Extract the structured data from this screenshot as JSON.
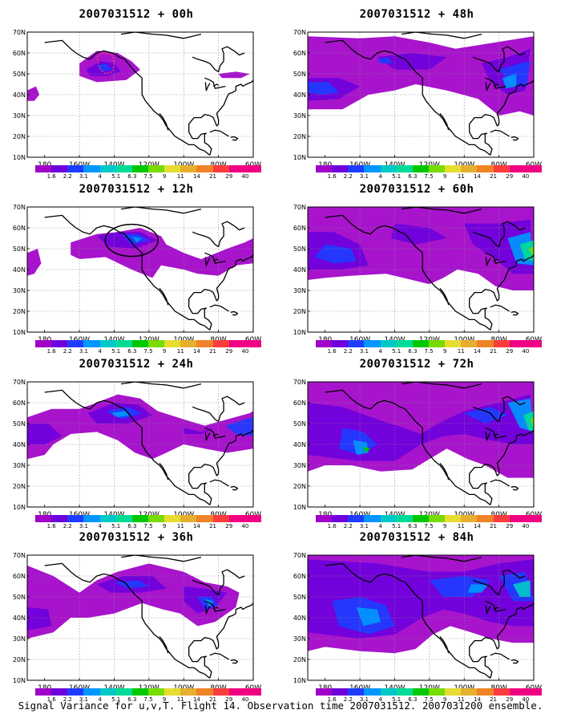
{
  "caption": "Signal Variance for u,v,T. Flight 14. Observation time 2007031512. 2007031200 ensemble.",
  "axes": {
    "x_ticks": [
      "180",
      "160W",
      "140W",
      "120W",
      "100W",
      "80W",
      "60W"
    ],
    "y_ticks": [
      "10N",
      "20N",
      "30N",
      "40N",
      "50N",
      "60N",
      "70N"
    ]
  },
  "colorbar": {
    "levels": [
      "1.6",
      "2.2",
      "3.1",
      "4",
      "5.1",
      "6.3",
      "7.5",
      "9",
      "11",
      "14",
      "21",
      "29",
      "40"
    ],
    "colors": [
      "#a000c8",
      "#6e00dc",
      "#1e3cff",
      "#0096ff",
      "#00c8c8",
      "#00dc96",
      "#00c800",
      "#78dc00",
      "#e6dc32",
      "#e6af2d",
      "#f08228",
      "#fa3c3c",
      "#f00082"
    ]
  },
  "colors": {
    "background": "#ffffff",
    "land_outline": "#000000",
    "grid": "#888888",
    "flight_track_marker": "#ff3c78"
  },
  "chart_data": [
    {
      "type": "heatmap",
      "title": "2007031512 + 00h",
      "lead_hours": 0,
      "xlim": [
        "180",
        "60W"
      ],
      "ylim": [
        "10N",
        "70N"
      ],
      "grid": true,
      "annotation": "dashed flight track near 145W 55N",
      "max_signal_variance_class": "4"
    },
    {
      "type": "heatmap",
      "title": "2007031512 + 12h",
      "lead_hours": 12,
      "xlim": [
        "180",
        "60W"
      ],
      "ylim": [
        "10N",
        "70N"
      ],
      "grid": true,
      "annotation": "circle around 130W 54N",
      "max_signal_variance_class": "4"
    },
    {
      "type": "heatmap",
      "title": "2007031512 + 24h",
      "lead_hours": 24,
      "xlim": [
        "180",
        "60W"
      ],
      "ylim": [
        "10N",
        "70N"
      ],
      "grid": true,
      "max_signal_variance_class": "5.1"
    },
    {
      "type": "heatmap",
      "title": "2007031512 + 36h",
      "lead_hours": 36,
      "xlim": [
        "180",
        "60W"
      ],
      "ylim": [
        "10N",
        "70N"
      ],
      "grid": true,
      "max_signal_variance_class": "5.1"
    },
    {
      "type": "heatmap",
      "title": "2007031512 + 48h",
      "lead_hours": 48,
      "xlim": [
        "180",
        "60W"
      ],
      "ylim": [
        "10N",
        "70N"
      ],
      "grid": true,
      "max_signal_variance_class": "6.3"
    },
    {
      "type": "heatmap",
      "title": "2007031512 + 60h",
      "lead_hours": 60,
      "xlim": [
        "180",
        "60W"
      ],
      "ylim": [
        "10N",
        "70N"
      ],
      "grid": true,
      "max_signal_variance_class": "9"
    },
    {
      "type": "heatmap",
      "title": "2007031512 + 72h",
      "lead_hours": 72,
      "xlim": [
        "180",
        "60W"
      ],
      "ylim": [
        "10N",
        "70N"
      ],
      "grid": true,
      "max_signal_variance_class": "9"
    },
    {
      "type": "heatmap",
      "title": "2007031512 + 84h",
      "lead_hours": 84,
      "xlim": [
        "180",
        "60W"
      ],
      "ylim": [
        "10N",
        "70N"
      ],
      "grid": true,
      "max_signal_variance_class": "9"
    }
  ]
}
